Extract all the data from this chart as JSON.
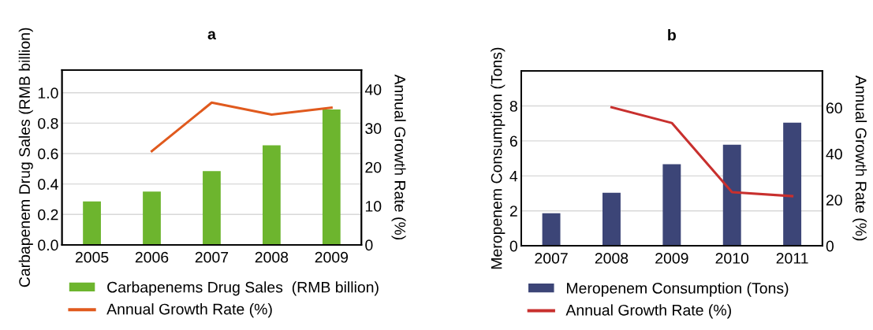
{
  "chart_data": [
    {
      "type": "bar",
      "title": "a",
      "categories": [
        "2005",
        "2006",
        "2007",
        "2008",
        "2009"
      ],
      "ylabel": "Carbapenem Drug Sales (RMB billion)",
      "y2label": "Annual Growth Rate (%)",
      "ylim": [
        0,
        1.15
      ],
      "yticks": [
        {
          "value": 0,
          "label": "0.0"
        },
        0.2,
        0.4,
        0.6,
        0.8,
        {
          "value": 1,
          "label": "1.0"
        }
      ],
      "y2lim": [
        0,
        45
      ],
      "y2ticks": [
        0,
        10,
        20,
        30,
        40
      ],
      "grid": "y",
      "legend": "bottom",
      "series": [
        {
          "name": "Carbapenems Drug Sales  (RMB billion)",
          "color": "#6db52e",
          "values": [
            0.285,
            0.35,
            0.485,
            0.655,
            0.89
          ]
        },
        {
          "name": "Annual Growth Rate (%)",
          "type": "line",
          "axis": "y2",
          "color": "#e05a1e",
          "values": [
            null,
            24.1,
            36.6,
            33.5,
            35.3
          ]
        }
      ]
    },
    {
      "type": "bar",
      "title": "b",
      "categories": [
        "2007",
        "2008",
        "2009",
        "2010",
        "2011"
      ],
      "ylabel": "Meropenem Consumption (Tons)",
      "y2label": "Annual Growth Rate (%)",
      "ylim": [
        0,
        10
      ],
      "yticks": [
        0,
        2,
        4,
        6,
        8
      ],
      "y2lim": [
        0,
        76
      ],
      "y2ticks": [
        0,
        20,
        40,
        60
      ],
      "grid": "y",
      "legend": "bottom",
      "series": [
        {
          "name": "Meropenem Consumption (Tons)",
          "color": "#3c4577",
          "values": [
            1.86,
            3.03,
            4.67,
            5.78,
            7.04
          ]
        },
        {
          "name": "Annual Growth Rate (%)",
          "type": "line",
          "axis": "y2",
          "color": "#c8302e",
          "values": [
            null,
            60.2,
            53.4,
            23.3,
            21.6
          ]
        }
      ]
    }
  ]
}
